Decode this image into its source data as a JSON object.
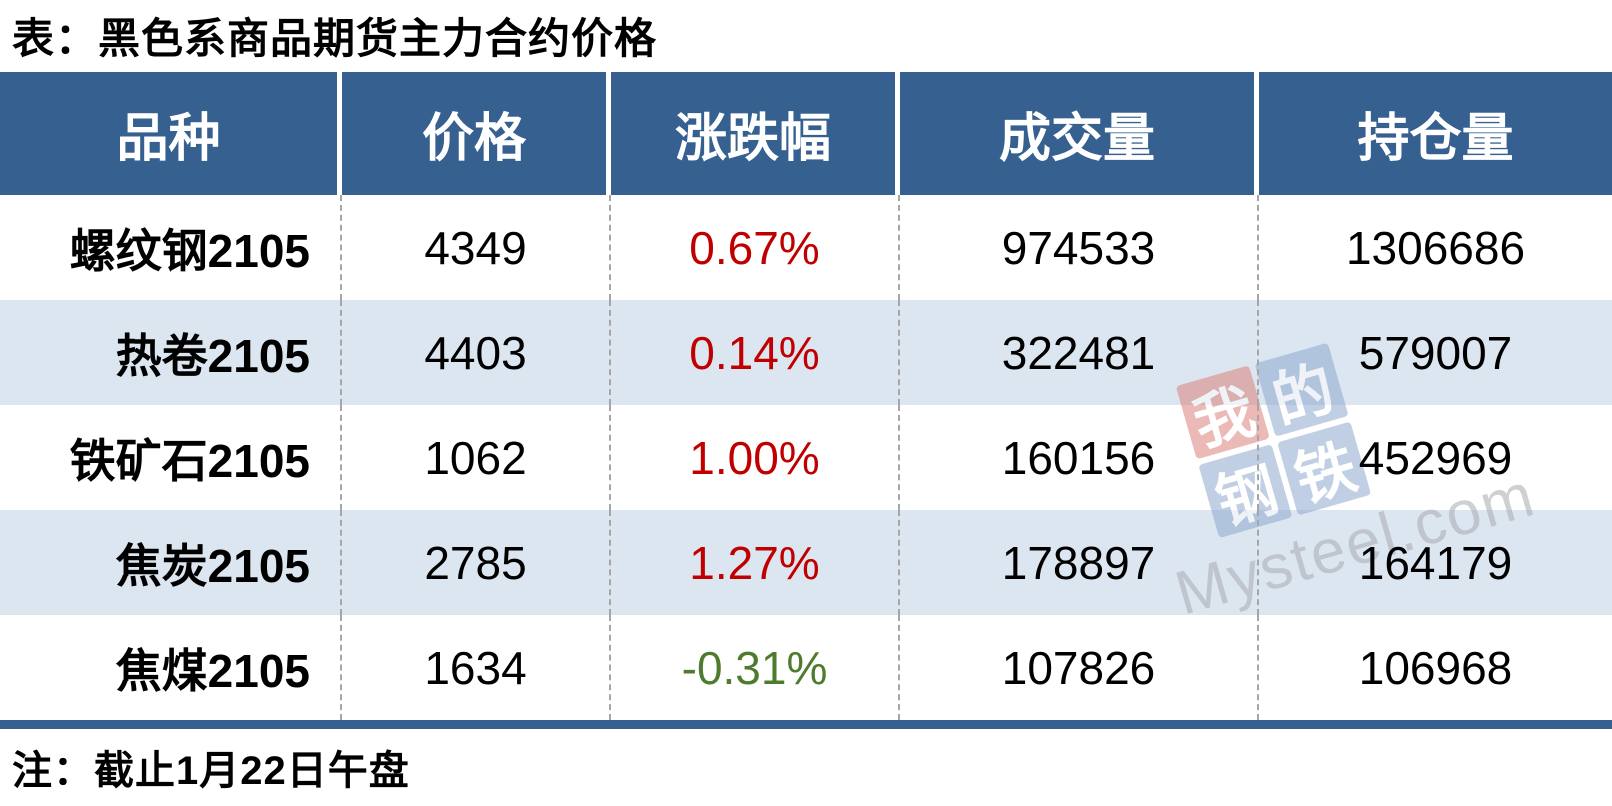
{
  "title": "表：黑色系商品期货主力合约价格",
  "note": "注：截止1月22日午盘",
  "table": {
    "headers": [
      "品种",
      "价格",
      "涨跌幅",
      "成交量",
      "持仓量"
    ],
    "rows": [
      {
        "variety": "螺纹钢2105",
        "price": "4349",
        "change": "0.67%",
        "change_dir": "up",
        "volume": "974533",
        "open_interest": "1306686"
      },
      {
        "variety": "热卷2105",
        "price": "4403",
        "change": "0.14%",
        "change_dir": "up",
        "volume": "322481",
        "open_interest": "579007"
      },
      {
        "variety": "铁矿石2105",
        "price": "1062",
        "change": "1.00%",
        "change_dir": "up",
        "volume": "160156",
        "open_interest": "452969"
      },
      {
        "variety": "焦炭2105",
        "price": "2785",
        "change": "1.27%",
        "change_dir": "up",
        "volume": "178897",
        "open_interest": "164179"
      },
      {
        "variety": "焦煤2105",
        "price": "1634",
        "change": "-0.31%",
        "change_dir": "down",
        "volume": "107826",
        "open_interest": "106968"
      }
    ]
  },
  "watermark": {
    "tiles": [
      {
        "char": "我",
        "color": "red"
      },
      {
        "char": "的",
        "color": "blue"
      },
      {
        "char": "钢",
        "color": "blue"
      },
      {
        "char": "铁",
        "color": "blue"
      }
    ],
    "text": "Mysteel.com"
  },
  "colors": {
    "header_bg": "#366090",
    "row_alt_bg": "#DCE6F1",
    "up_red": "#C00000",
    "down_green": "#4F7B2F",
    "bottom_border": "#366090",
    "divider_dash": "#A6A6A6",
    "watermark_text": "#A9AAB2",
    "watermark_red_tile": "#DB837C",
    "watermark_blue_tile": "#8FA9CF"
  },
  "chart_data": {
    "type": "table",
    "title": "表：黑色系商品期货主力合约价格",
    "columns": [
      "品种",
      "价格",
      "涨跌幅",
      "成交量",
      "持仓量"
    ],
    "rows": [
      [
        "螺纹钢2105",
        4349,
        "0.67%",
        974533,
        1306686
      ],
      [
        "热卷2105",
        4403,
        "0.14%",
        322481,
        579007
      ],
      [
        "铁矿石2105",
        1062,
        "1.00%",
        160156,
        452969
      ],
      [
        "焦炭2105",
        2785,
        "1.27%",
        178897,
        164179
      ],
      [
        "焦煤2105",
        1634,
        "-0.31%",
        107826,
        106968
      ]
    ],
    "note": "注：截止1月22日午盘"
  }
}
